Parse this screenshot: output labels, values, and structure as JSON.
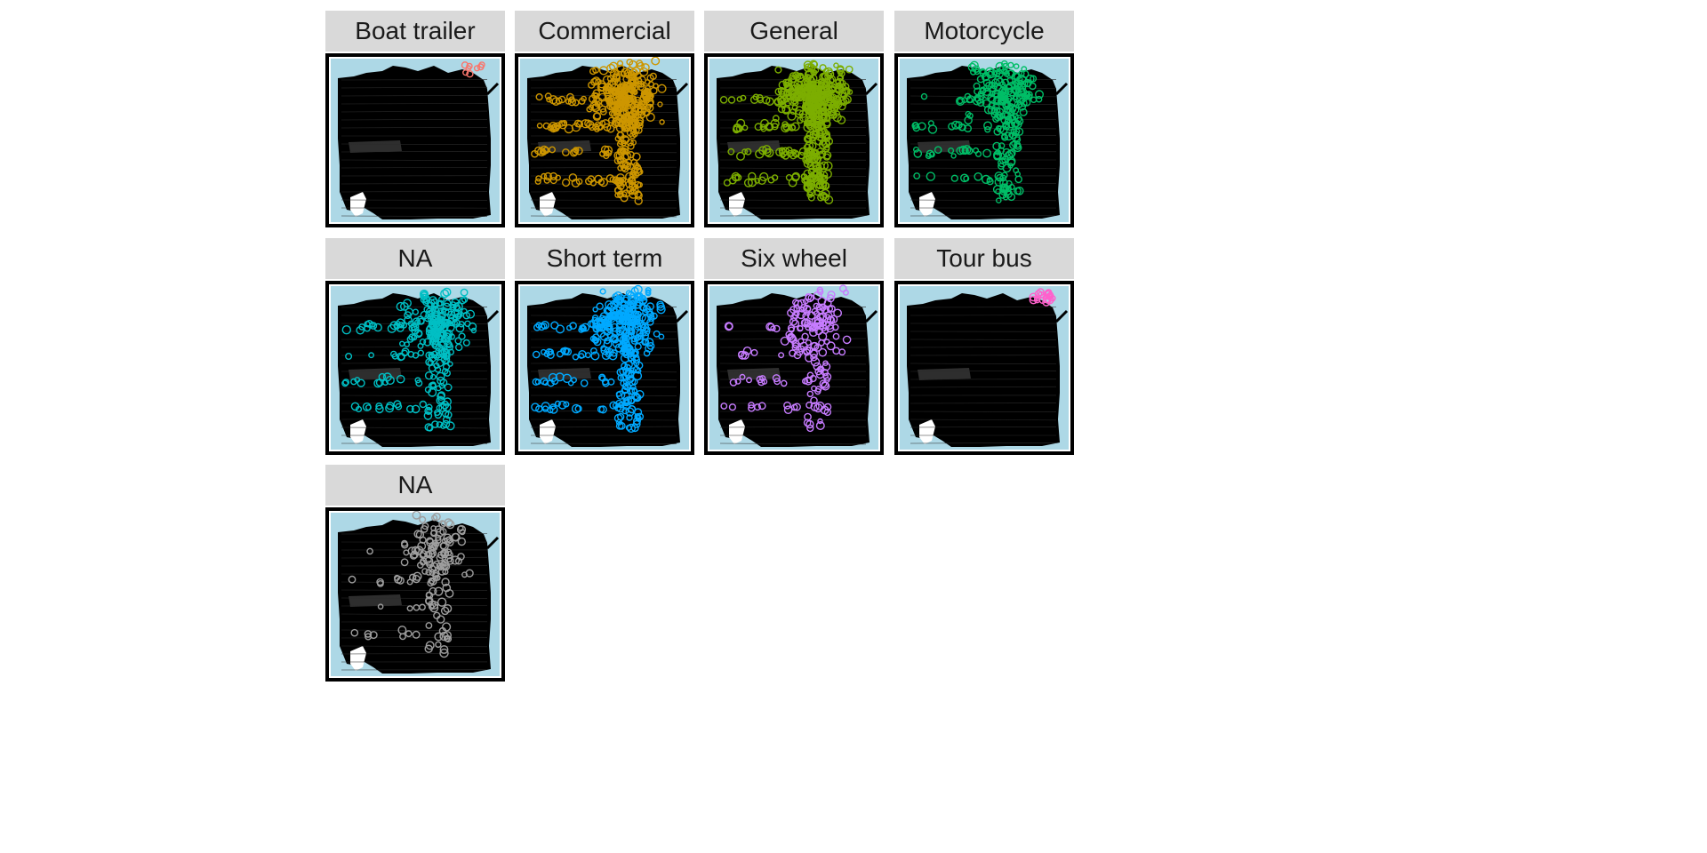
{
  "colors": {
    "water": "#add8e6",
    "street_network": "#000000",
    "strip_background": "#d9d9d9",
    "frame": "#000000"
  },
  "facets": [
    {
      "label": "Boat trailer",
      "color": "#f8766d",
      "density": 0.01
    },
    {
      "label": "Commercial",
      "color": "#cd9600",
      "density": 0.85
    },
    {
      "label": "General",
      "color": "#7cae00",
      "density": 1.0
    },
    {
      "label": "Motorcycle",
      "color": "#00be67",
      "density": 0.55
    },
    {
      "label": "NA",
      "color": "#00bfc4",
      "density": 0.55
    },
    {
      "label": "Short term",
      "color": "#00a9ff",
      "density": 0.75
    },
    {
      "label": "Six wheel",
      "color": "#c77cff",
      "density": 0.35
    },
    {
      "label": "Tour bus",
      "color": "#ff61cc",
      "density": 0.03
    },
    {
      "label": "NA",
      "color": "#9e9e9e",
      "density": 0.3
    }
  ]
}
